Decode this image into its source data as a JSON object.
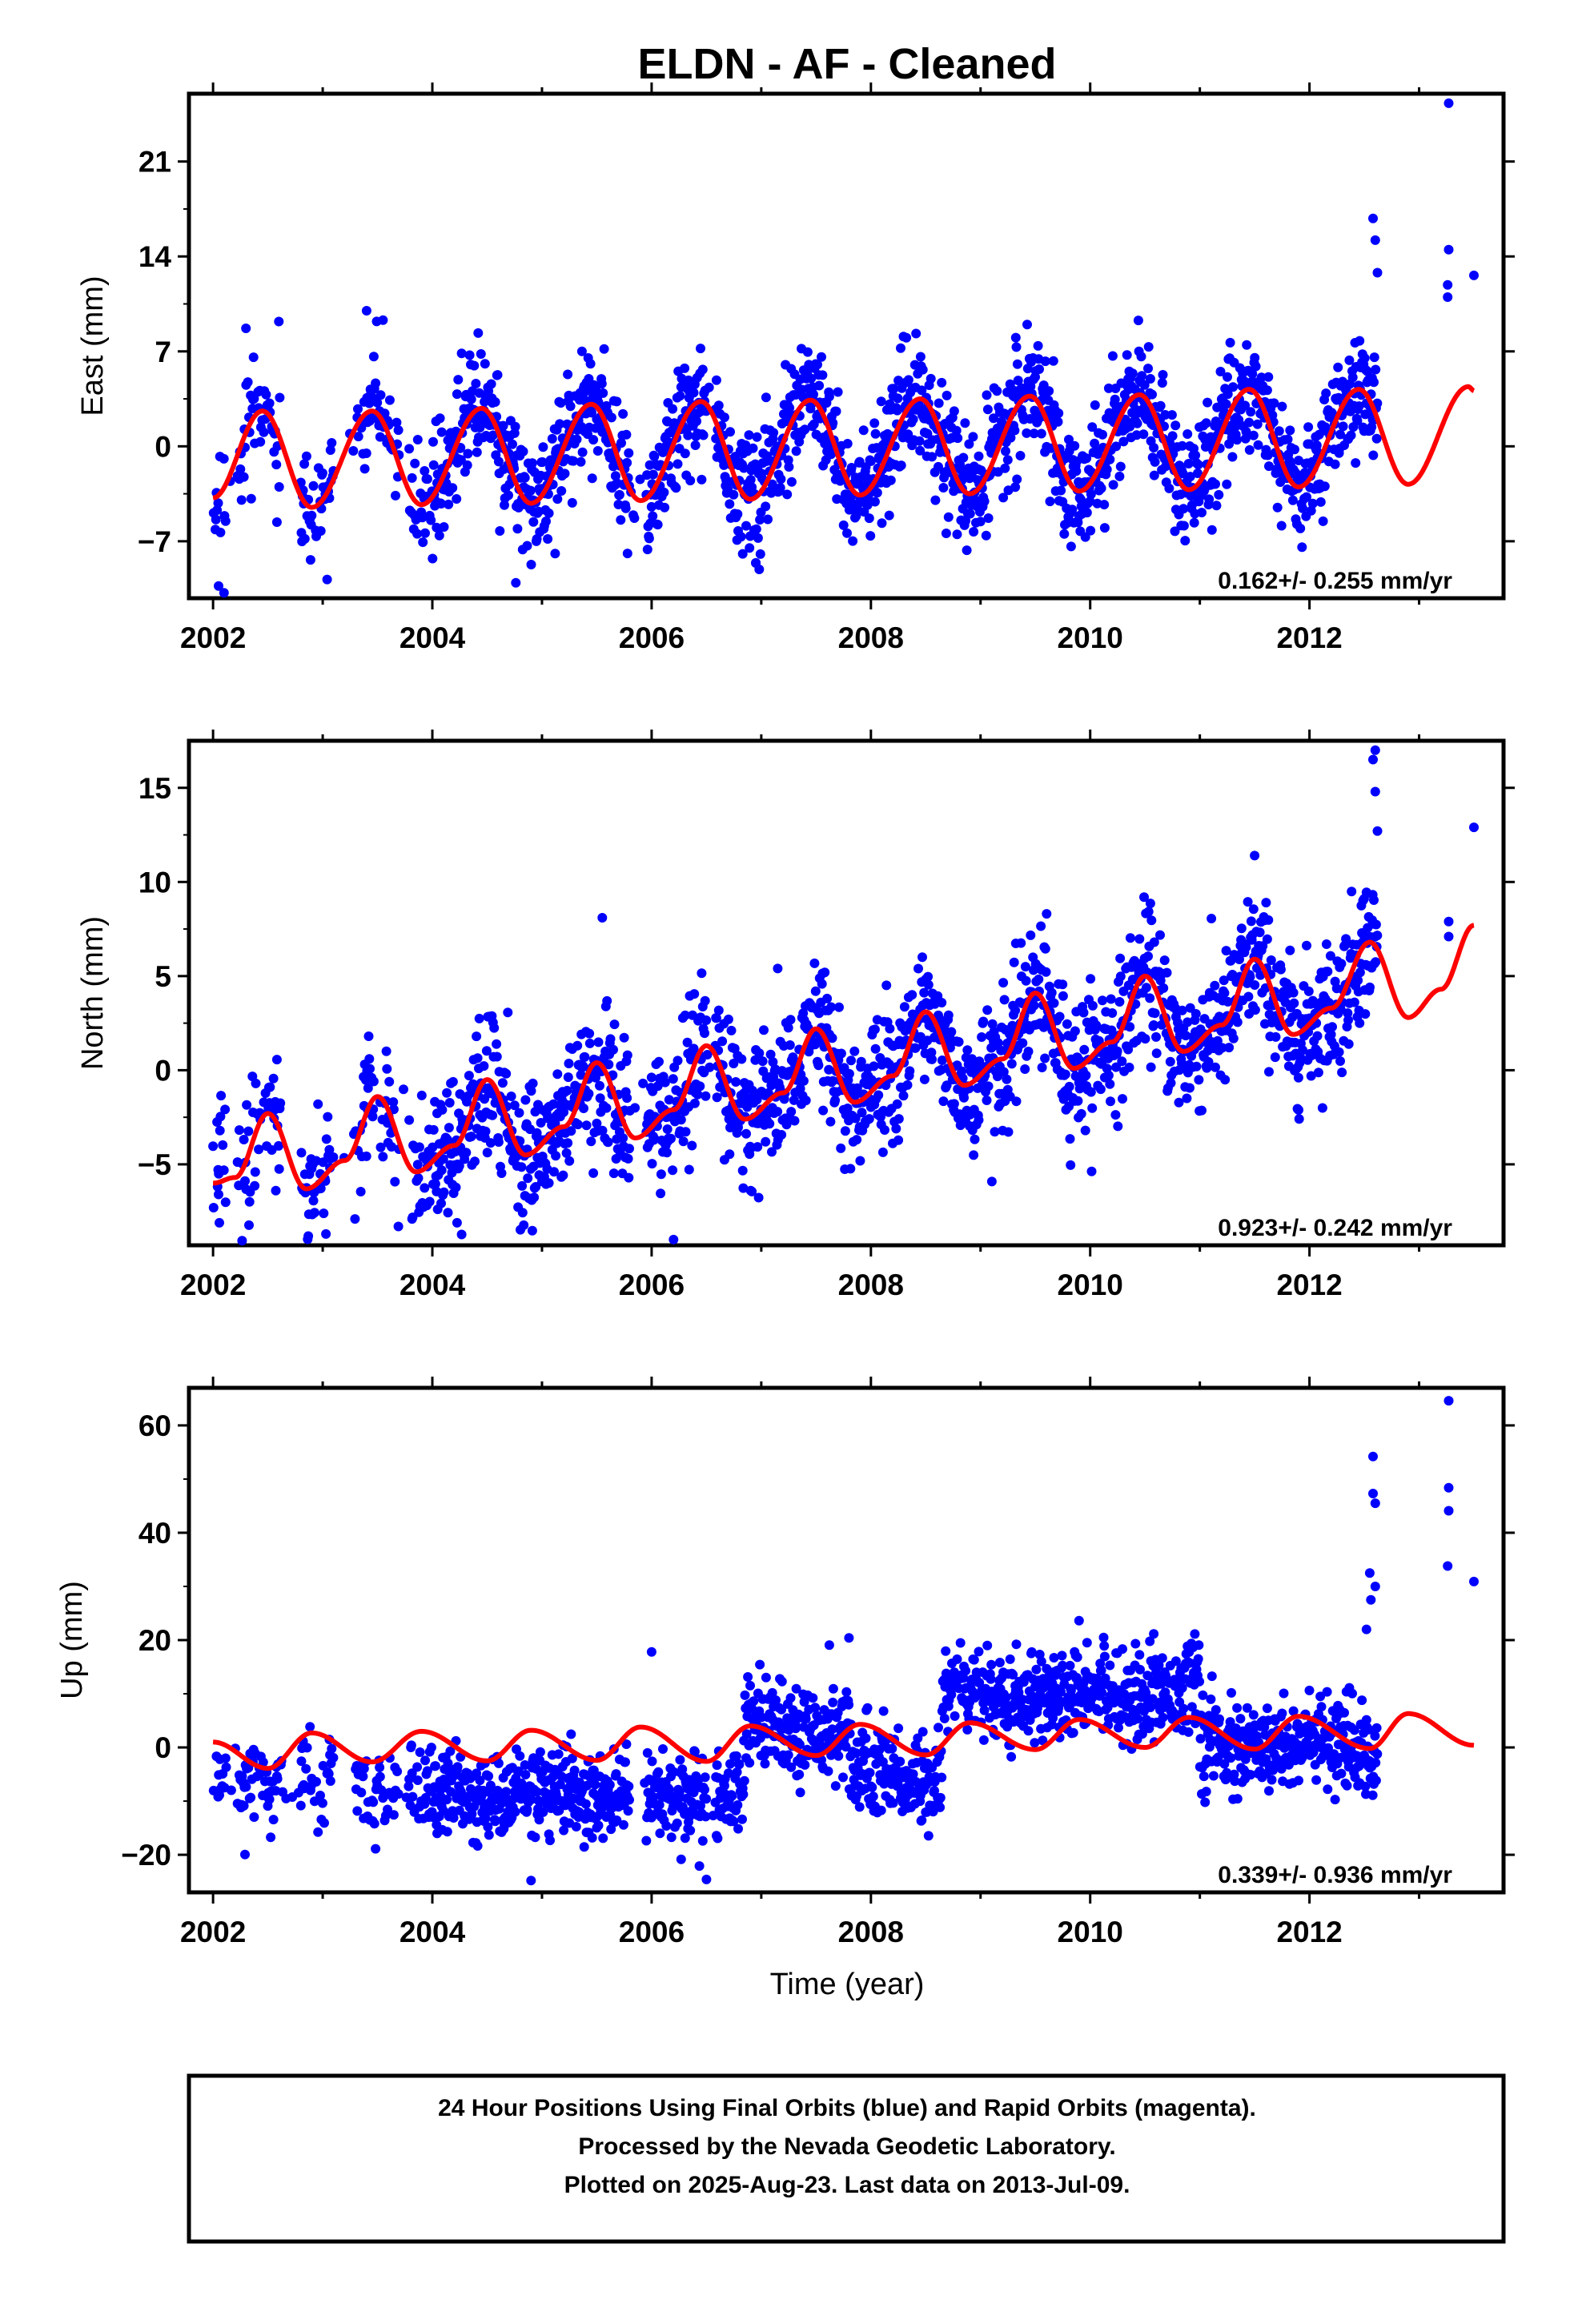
{
  "title": "ELDN  - AF - Cleaned",
  "footer": {
    "lines": [
      "24 Hour Positions Using Final Orbits (blue) and Rapid Orbits (magenta).",
      "Processed by the Nevada Geodetic Laboratory.",
      "Plotted on 2025-Aug-23. Last data on 2013-Jul-09."
    ]
  },
  "colors": {
    "data": "#0000ff",
    "fit": "#ff0000",
    "frame": "#000000"
  },
  "chart_data": [
    {
      "type": "scatter",
      "ylabel": "East (mm)",
      "xlabel": "",
      "xlim": [
        2001.78,
        2013.77
      ],
      "ylim": [
        -11.2,
        26.0
      ],
      "xticks": [
        2002,
        2004,
        2006,
        2008,
        2010,
        2012
      ],
      "yticks": [
        -7,
        0,
        7,
        14,
        21
      ],
      "rate_label": "0.162+/- 0.255 mm/yr",
      "series": [
        {
          "kind": "points",
          "data_span": [
            2002.0,
            2012.62
          ],
          "trend_slope": 0.162,
          "seasonal": [
            {
              "x": 2002.0,
              "y": -3.8
            },
            {
              "x": 2002.45,
              "y": 2.6
            },
            {
              "x": 2002.9,
              "y": -4.5
            },
            {
              "x": 2003.45,
              "y": 2.6
            },
            {
              "x": 2003.9,
              "y": -4.3
            },
            {
              "x": 2004.45,
              "y": 2.8
            },
            {
              "x": 2004.9,
              "y": -4.2
            },
            {
              "x": 2005.45,
              "y": 3.1
            },
            {
              "x": 2005.9,
              "y": -4.0
            },
            {
              "x": 2006.45,
              "y": 3.3
            },
            {
              "x": 2006.9,
              "y": -3.9
            },
            {
              "x": 2007.45,
              "y": 3.4
            },
            {
              "x": 2007.9,
              "y": -3.6
            },
            {
              "x": 2008.45,
              "y": 3.5
            },
            {
              "x": 2008.9,
              "y": -3.5
            },
            {
              "x": 2009.45,
              "y": 3.7
            },
            {
              "x": 2009.9,
              "y": -3.3
            },
            {
              "x": 2010.45,
              "y": 3.8
            },
            {
              "x": 2010.9,
              "y": -3.2
            },
            {
              "x": 2011.45,
              "y": 4.2
            },
            {
              "x": 2011.9,
              "y": -3.0
            },
            {
              "x": 2012.45,
              "y": 4.2
            },
            {
              "x": 2012.9,
              "y": -2.8
            },
            {
              "x": 2013.45,
              "y": 4.4
            },
            {
              "x": 2013.5,
              "y": 4.1
            }
          ],
          "noise": 2.1,
          "outliers": [
            {
              "x": 2002.05,
              "y": -10.3
            },
            {
              "x": 2002.1,
              "y": -10.8
            },
            {
              "x": 2002.3,
              "y": 8.7
            },
            {
              "x": 2002.6,
              "y": 9.2
            },
            {
              "x": 2003.4,
              "y": 10.0
            },
            {
              "x": 2003.55,
              "y": 9.3
            },
            {
              "x": 2006.95,
              "y": -8.6
            },
            {
              "x": 2012.58,
              "y": 16.8
            },
            {
              "x": 2012.6,
              "y": 15.2
            },
            {
              "x": 2012.62,
              "y": 12.8
            },
            {
              "x": 2013.27,
              "y": 25.3
            },
            {
              "x": 2013.27,
              "y": 14.5
            },
            {
              "x": 2013.26,
              "y": 11.9
            },
            {
              "x": 2013.26,
              "y": 11.0
            },
            {
              "x": 2013.5,
              "y": 12.6
            }
          ]
        }
      ]
    },
    {
      "type": "scatter",
      "ylabel": "North (mm)",
      "xlabel": "",
      "xlim": [
        2001.78,
        2013.77
      ],
      "ylim": [
        -9.3,
        17.5
      ],
      "xticks": [
        2002,
        2004,
        2006,
        2008,
        2010,
        2012
      ],
      "yticks": [
        -5,
        0,
        5,
        10,
        15
      ],
      "rate_label": "0.923+/- 0.242 mm/yr",
      "series": [
        {
          "kind": "points",
          "data_span": [
            2002.0,
            2012.62
          ],
          "seasonal": [
            {
              "x": 2002.0,
              "y": -6.0
            },
            {
              "x": 2002.2,
              "y": -5.7
            },
            {
              "x": 2002.5,
              "y": -2.3
            },
            {
              "x": 2002.85,
              "y": -6.3
            },
            {
              "x": 2003.2,
              "y": -4.8
            },
            {
              "x": 2003.5,
              "y": -1.4
            },
            {
              "x": 2003.85,
              "y": -5.4
            },
            {
              "x": 2004.2,
              "y": -4.0
            },
            {
              "x": 2004.5,
              "y": -0.5
            },
            {
              "x": 2004.85,
              "y": -4.5
            },
            {
              "x": 2005.2,
              "y": -3.0
            },
            {
              "x": 2005.5,
              "y": 0.4
            },
            {
              "x": 2005.85,
              "y": -3.6
            },
            {
              "x": 2006.2,
              "y": -2.1
            },
            {
              "x": 2006.5,
              "y": 1.3
            },
            {
              "x": 2006.85,
              "y": -2.6
            },
            {
              "x": 2007.2,
              "y": -1.2
            },
            {
              "x": 2007.5,
              "y": 2.2
            },
            {
              "x": 2007.85,
              "y": -1.7
            },
            {
              "x": 2008.2,
              "y": -0.3
            },
            {
              "x": 2008.5,
              "y": 3.1
            },
            {
              "x": 2008.85,
              "y": -0.8
            },
            {
              "x": 2009.2,
              "y": 0.6
            },
            {
              "x": 2009.5,
              "y": 4.1
            },
            {
              "x": 2009.85,
              "y": 0.1
            },
            {
              "x": 2010.2,
              "y": 1.5
            },
            {
              "x": 2010.5,
              "y": 5.0
            },
            {
              "x": 2010.85,
              "y": 1.0
            },
            {
              "x": 2011.2,
              "y": 2.4
            },
            {
              "x": 2011.5,
              "y": 5.9
            },
            {
              "x": 2011.85,
              "y": 1.9
            },
            {
              "x": 2012.2,
              "y": 3.3
            },
            {
              "x": 2012.55,
              "y": 6.8
            },
            {
              "x": 2012.9,
              "y": 2.8
            },
            {
              "x": 2013.2,
              "y": 4.3
            },
            {
              "x": 2013.5,
              "y": 7.7
            }
          ],
          "noise": 1.8,
          "outliers": [
            {
              "x": 2002.05,
              "y": -6.6
            },
            {
              "x": 2005.55,
              "y": 8.1
            },
            {
              "x": 2006.2,
              "y": -9.0
            },
            {
              "x": 2007.15,
              "y": 5.4
            },
            {
              "x": 2011.5,
              "y": 11.4
            },
            {
              "x": 2011.9,
              "y": -0.4
            },
            {
              "x": 2012.6,
              "y": 17.0
            },
            {
              "x": 2012.58,
              "y": 16.5
            },
            {
              "x": 2012.6,
              "y": 14.8
            },
            {
              "x": 2012.62,
              "y": 12.7
            },
            {
              "x": 2013.27,
              "y": 7.9
            },
            {
              "x": 2013.27,
              "y": 7.1
            },
            {
              "x": 2013.5,
              "y": 12.9
            }
          ]
        }
      ]
    },
    {
      "type": "scatter",
      "ylabel": "Up (mm)",
      "xlabel": "Time (year)",
      "xlim": [
        2001.78,
        2013.77
      ],
      "ylim": [
        -27,
        67
      ],
      "xticks": [
        2002,
        2004,
        2006,
        2008,
        2010,
        2012
      ],
      "yticks": [
        -20,
        0,
        20,
        40,
        60
      ],
      "rate_label": "0.339+/- 0.936 mm/yr",
      "series": [
        {
          "kind": "points",
          "data_span": [
            2002.0,
            2012.62
          ],
          "levels": [
            {
              "from": 2002.0,
              "to": 2003.4,
              "y": -6.0
            },
            {
              "from": 2003.4,
              "to": 2006.0,
              "y": -9.0
            },
            {
              "from": 2006.0,
              "to": 2006.85,
              "y": -9.5
            },
            {
              "from": 2006.85,
              "to": 2007.8,
              "y": 3.0
            },
            {
              "from": 2007.8,
              "to": 2008.65,
              "y": -6.0
            },
            {
              "from": 2008.65,
              "to": 2011.0,
              "y": 9.5
            },
            {
              "from": 2011.0,
              "to": 2012.62,
              "y": -1.0
            }
          ],
          "seasonal": [
            {
              "x": 2002.0,
              "y": 1.0
            },
            {
              "x": 2002.5,
              "y": -3.9
            },
            {
              "x": 2002.9,
              "y": 2.7
            },
            {
              "x": 2003.45,
              "y": -2.7
            },
            {
              "x": 2003.9,
              "y": 3.0
            },
            {
              "x": 2004.5,
              "y": -2.5
            },
            {
              "x": 2004.9,
              "y": 3.2
            },
            {
              "x": 2005.5,
              "y": -2.4
            },
            {
              "x": 2005.9,
              "y": 3.8
            },
            {
              "x": 2006.5,
              "y": -2.6
            },
            {
              "x": 2006.9,
              "y": 4.0
            },
            {
              "x": 2007.5,
              "y": -1.5
            },
            {
              "x": 2007.9,
              "y": 4.3
            },
            {
              "x": 2008.5,
              "y": -1.4
            },
            {
              "x": 2008.9,
              "y": 4.6
            },
            {
              "x": 2009.5,
              "y": -0.4
            },
            {
              "x": 2009.9,
              "y": 5.2
            },
            {
              "x": 2010.5,
              "y": 0.0
            },
            {
              "x": 2010.9,
              "y": 5.6
            },
            {
              "x": 2011.5,
              "y": -0.3
            },
            {
              "x": 2011.9,
              "y": 5.8
            },
            {
              "x": 2012.55,
              "y": -0.2
            },
            {
              "x": 2012.9,
              "y": 6.3
            },
            {
              "x": 2013.5,
              "y": 0.4
            }
          ],
          "noise": 4.2,
          "outliers": [
            {
              "x": 2006.0,
              "y": 17.8
            },
            {
              "x": 2007.8,
              "y": 20.4
            },
            {
              "x": 2012.58,
              "y": 54.2
            },
            {
              "x": 2012.58,
              "y": 47.3
            },
            {
              "x": 2012.6,
              "y": 45.5
            },
            {
              "x": 2012.55,
              "y": 32.5
            },
            {
              "x": 2012.6,
              "y": 30.0
            },
            {
              "x": 2012.56,
              "y": 27.5
            },
            {
              "x": 2012.52,
              "y": 22.0
            },
            {
              "x": 2013.27,
              "y": 64.6
            },
            {
              "x": 2013.27,
              "y": 48.4
            },
            {
              "x": 2013.27,
              "y": 44.1
            },
            {
              "x": 2013.26,
              "y": 33.8
            },
            {
              "x": 2013.5,
              "y": 30.9
            },
            {
              "x": 2004.9,
              "y": -24.8
            },
            {
              "x": 2006.5,
              "y": -24.6
            }
          ]
        }
      ]
    }
  ]
}
